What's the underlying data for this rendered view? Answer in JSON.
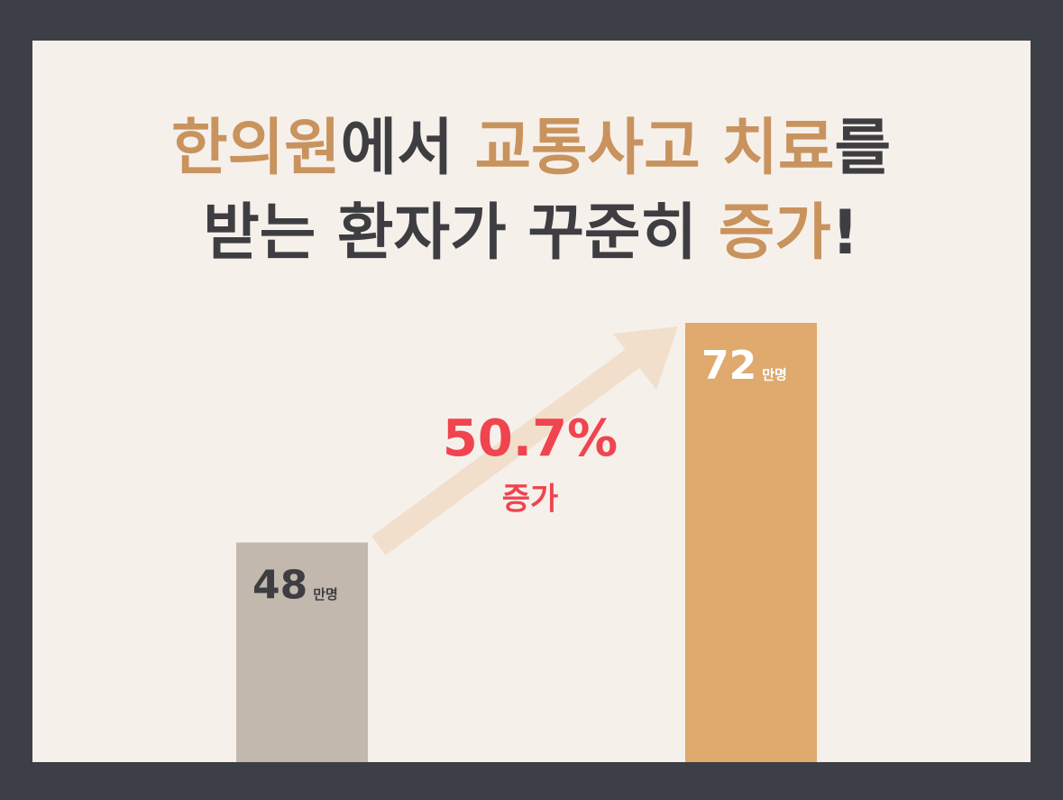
{
  "chart_data": {
    "type": "bar",
    "title": [
      [
        {
          "text": "한의원",
          "color": "#c9935e"
        },
        {
          "text": "에서 ",
          "color": "#3e3e42"
        },
        {
          "text": "교통사고 치료",
          "color": "#c9935e"
        },
        {
          "text": "를",
          "color": "#3e3e42"
        }
      ],
      [
        {
          "text": "받는 환자가 꾸준히 ",
          "color": "#3e3e42"
        },
        {
          "text": "증가",
          "color": "#c9935e"
        },
        {
          "text": "!",
          "color": "#3e3e42"
        }
      ]
    ],
    "categories": [
      null,
      null
    ],
    "values": [
      48,
      72
    ],
    "unit": "만명",
    "colors": [
      "#c3b8ae",
      "#e0a96d"
    ],
    "label_colors": [
      "#3e3e42",
      "#ffffff"
    ],
    "ylim": [
      24,
      72
    ],
    "annotation": {
      "value": "50.7%",
      "text": "증가",
      "color": "#f0444f"
    }
  }
}
